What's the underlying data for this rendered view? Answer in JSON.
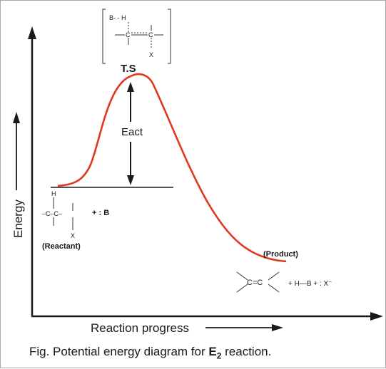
{
  "figure": {
    "transition_state_label": "T.S",
    "activation_label": "Eact",
    "reactant_label": "(Reactant)",
    "product_label": "(Product)",
    "y_axis_label": "Energy",
    "x_axis_label": "Reaction progress",
    "caption_prefix": "Fig. Potential energy diagram for",
    "caption_e": "E",
    "caption_subscript": "2",
    "caption_suffix": "reaction.",
    "colors": {
      "curve": "#e0381e",
      "axes": "#1a1a1a"
    }
  },
  "transition_state_structure": {
    "base_bond": "B- - H",
    "carbon_left": "C",
    "carbon_right": "C",
    "leaving_group": "X"
  },
  "reactant_structure": {
    "hydrogen": "H",
    "chain": "–C–C–",
    "leaving_group": "X",
    "base": "+ : B"
  },
  "product_structure": {
    "alkene": "C=C",
    "byproducts": "+ H—B + : X⁻"
  }
}
